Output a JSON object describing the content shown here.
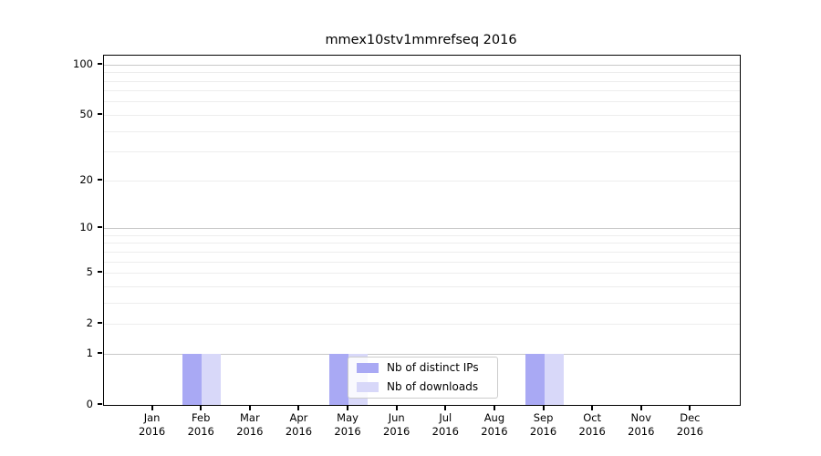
{
  "chart_data": {
    "type": "bar",
    "title": "mmex10stv1mmrefseq 2016",
    "xlabel": "",
    "ylabel": "",
    "y_scale": "log1p",
    "ylim": [
      0,
      114
    ],
    "y_ticks": [
      0,
      1,
      2,
      5,
      10,
      20,
      50,
      100
    ],
    "y_major_gridlines": [
      1,
      10,
      100
    ],
    "y_minor_gridlines": [
      2,
      3,
      4,
      5,
      6,
      7,
      8,
      9,
      20,
      30,
      40,
      50,
      60,
      70,
      80,
      90
    ],
    "grid": true,
    "categories": [
      "Jan",
      "Feb",
      "Mar",
      "Apr",
      "May",
      "Jun",
      "Jul",
      "Aug",
      "Sep",
      "Oct",
      "Nov",
      "Dec"
    ],
    "category_year": "2016",
    "series": [
      {
        "name": "Nb of distinct IPs",
        "color": "#a9a9f4",
        "values": [
          0,
          1,
          0,
          0,
          1,
          0,
          0,
          0,
          1,
          0,
          0,
          0
        ]
      },
      {
        "name": "Nb of downloads",
        "color": "#d8d8f9",
        "values": [
          0,
          1,
          0,
          0,
          1,
          0,
          0,
          0,
          1,
          0,
          0,
          0
        ]
      }
    ],
    "legend": {
      "position": "lower center",
      "entries": [
        "Nb of distinct IPs",
        "Nb of downloads"
      ]
    },
    "background": "#ffffff"
  }
}
